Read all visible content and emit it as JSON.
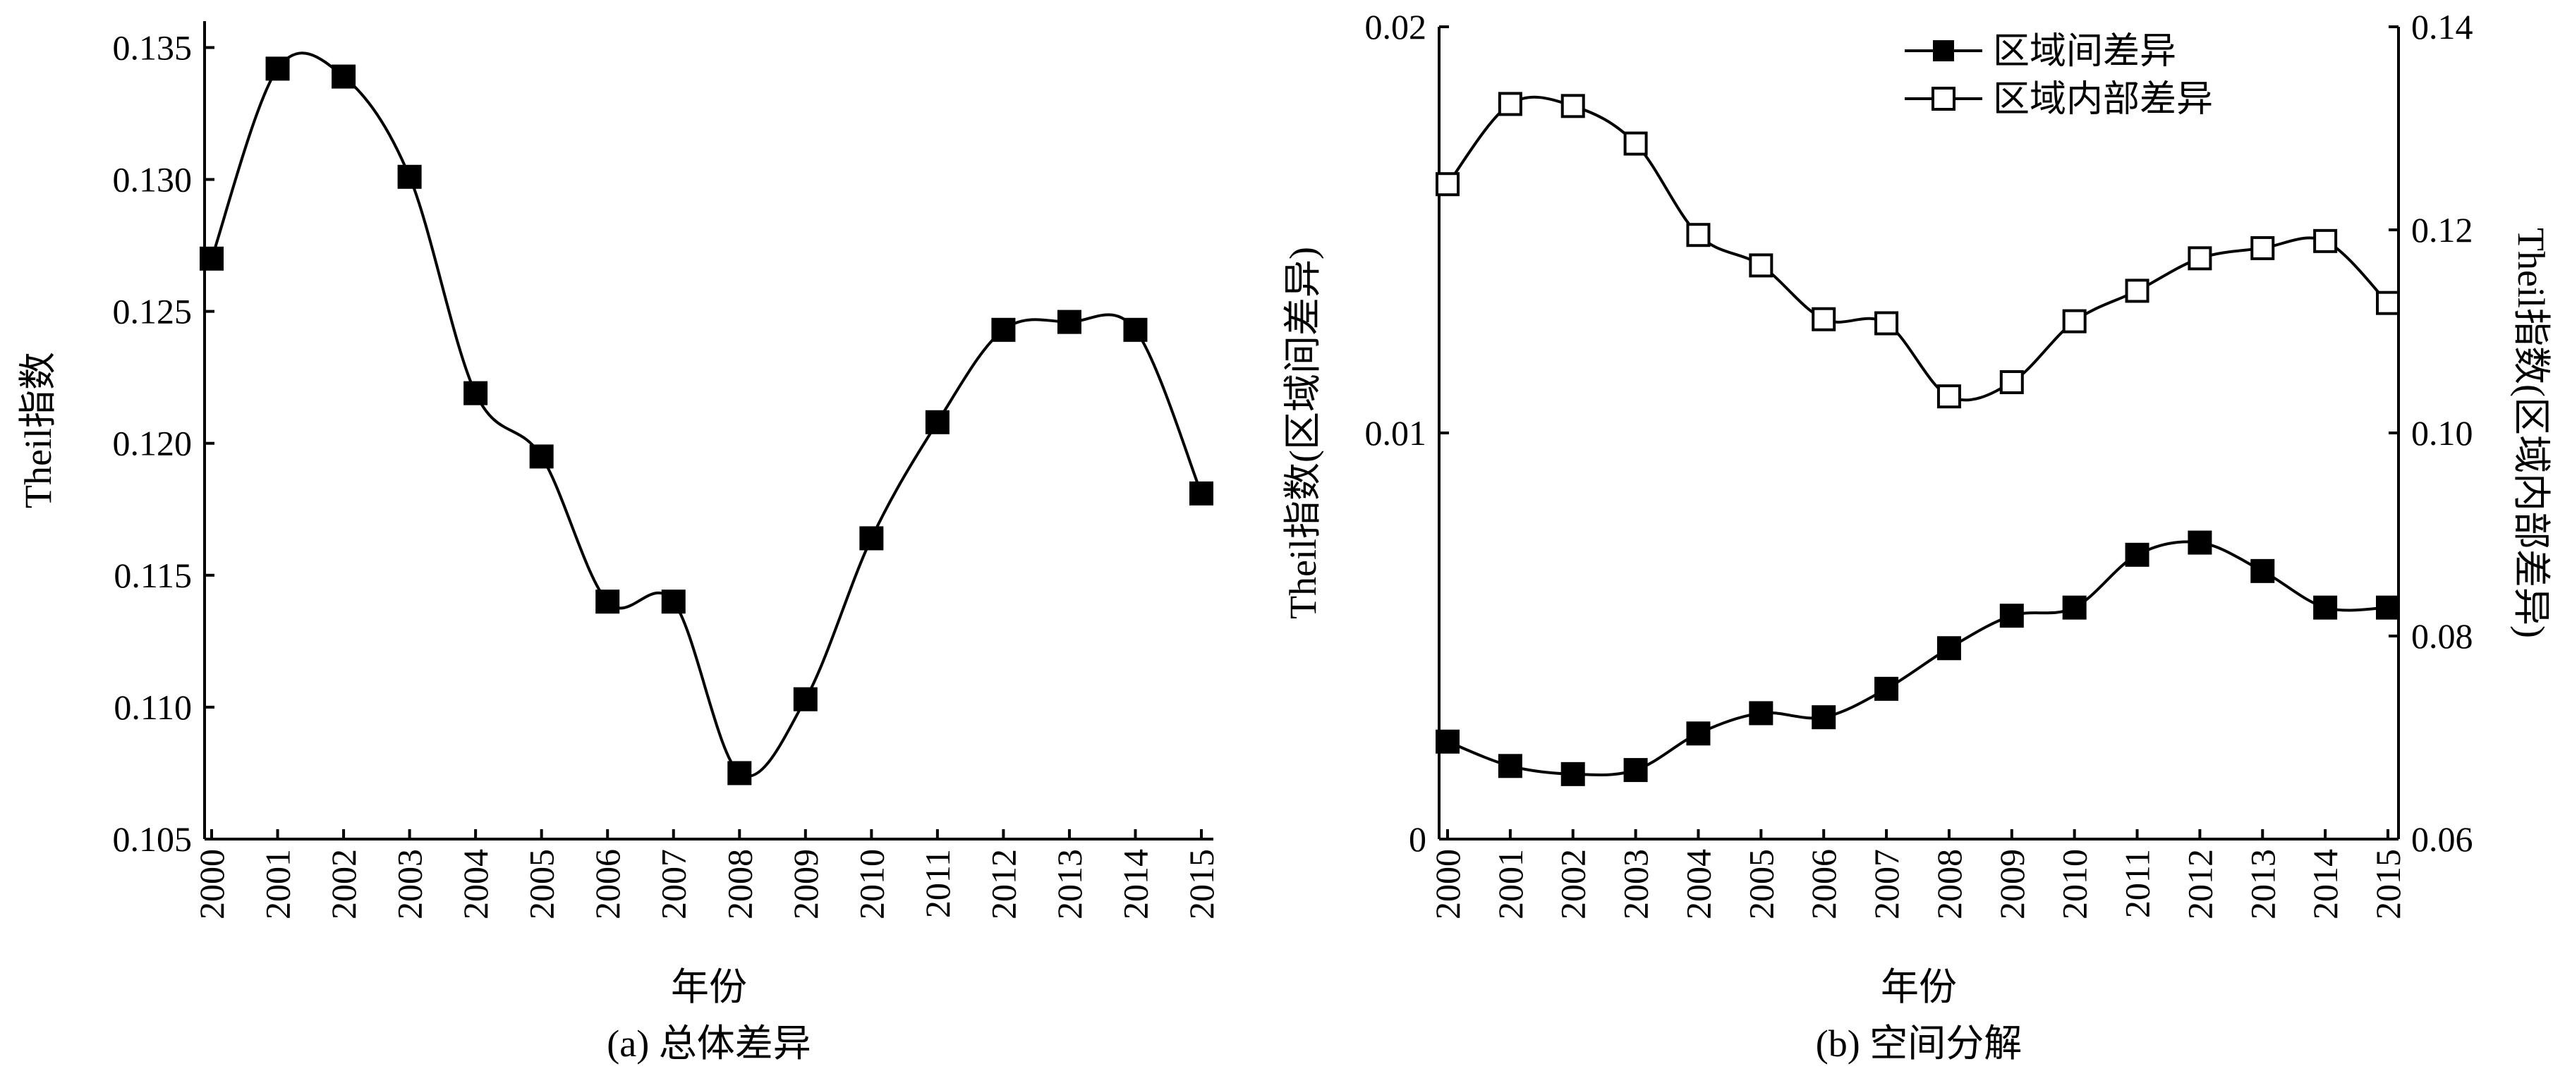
{
  "chart_data": [
    {
      "type": "line",
      "caption": "(a) 总体差异",
      "xlabel": "年份",
      "ylabel": "Theil指数",
      "x": [
        2000,
        2001,
        2002,
        2003,
        2004,
        2005,
        2006,
        2007,
        2008,
        2009,
        2010,
        2011,
        2012,
        2013,
        2014,
        2015
      ],
      "xticks": [
        "2000",
        "2001",
        "2002",
        "2003",
        "2004",
        "2005",
        "2006",
        "2007",
        "2008",
        "2009",
        "2010",
        "2011",
        "2012",
        "2013",
        "2014",
        "2015"
      ],
      "ylim": [
        0.105,
        0.136
      ],
      "yticks": [
        "0.105",
        "0.110",
        "0.115",
        "0.120",
        "0.125",
        "0.130",
        "0.135"
      ],
      "series": [
        {
          "marker": "filled-square",
          "values": [
            0.127,
            0.1342,
            0.1339,
            0.1301,
            0.1219,
            0.1195,
            0.114,
            0.114,
            0.1075,
            0.1103,
            0.1164,
            0.1208,
            0.1243,
            0.1246,
            0.1243,
            0.1181
          ]
        }
      ]
    },
    {
      "type": "line",
      "caption": "(b) 空间分解",
      "xlabel": "年份",
      "ylabel": "Theil指数(区域间差异)",
      "y2label": "Theil指数(区域内部差异)",
      "x": [
        2000,
        2001,
        2002,
        2003,
        2004,
        2005,
        2006,
        2007,
        2008,
        2009,
        2010,
        2011,
        2012,
        2013,
        2014,
        2015
      ],
      "xticks": [
        "2000",
        "2001",
        "2002",
        "2003",
        "2004",
        "2005",
        "2006",
        "2007",
        "2008",
        "2009",
        "2010",
        "2011",
        "2012",
        "2013",
        "2014",
        "2015"
      ],
      "ylim": [
        0,
        0.02
      ],
      "yticks": [
        "0",
        "0.01",
        "0.02"
      ],
      "y2lim": [
        0.06,
        0.14
      ],
      "y2ticks": [
        "0.06",
        "0.08",
        "0.10",
        "0.12",
        "0.14"
      ],
      "legend_position": "top-right",
      "series": [
        {
          "name": "区域间差异",
          "axis": "left",
          "marker": "filled-square",
          "values": [
            0.0024,
            0.0018,
            0.0016,
            0.0017,
            0.0026,
            0.0031,
            0.003,
            0.0037,
            0.0047,
            0.0055,
            0.0057,
            0.007,
            0.0073,
            0.0066,
            0.0057,
            0.0057
          ]
        },
        {
          "name": "区域内部差异",
          "axis": "right",
          "marker": "open-square",
          "values": [
            0.1245,
            0.1324,
            0.1322,
            0.1285,
            0.1195,
            0.1165,
            0.1112,
            0.1108,
            0.1036,
            0.105,
            0.111,
            0.114,
            0.1172,
            0.1182,
            0.1189,
            0.1128
          ]
        }
      ]
    }
  ]
}
